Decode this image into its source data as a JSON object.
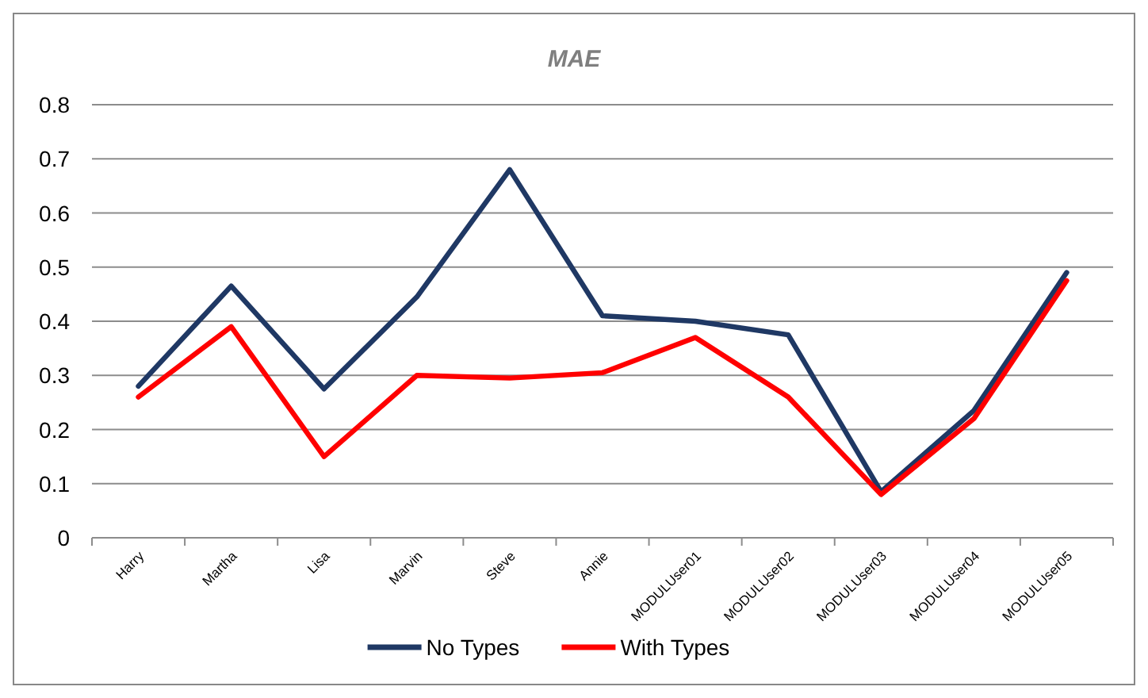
{
  "chart_data": {
    "type": "line",
    "title": "MAE",
    "categories": [
      "Harry",
      "Martha",
      "Lisa",
      "Marvin",
      "Steve",
      "Annie",
      "MODULUser01",
      "MODULUser02",
      "MODULUser03",
      "MODULUser04",
      "MODULUser05"
    ],
    "series": [
      {
        "name": "No Types",
        "color": "#1f3864",
        "values": [
          0.28,
          0.465,
          0.275,
          0.445,
          0.68,
          0.41,
          0.4,
          0.375,
          0.085,
          0.235,
          0.49
        ]
      },
      {
        "name": "With Types",
        "color": "#ff0000",
        "values": [
          0.26,
          0.39,
          0.15,
          0.3,
          0.295,
          0.305,
          0.37,
          0.26,
          0.08,
          0.22,
          0.475
        ]
      }
    ],
    "ylim": [
      0,
      0.8
    ],
    "yticks": [
      0,
      0.1,
      0.2,
      0.3,
      0.4,
      0.5,
      0.6,
      0.7,
      0.8
    ],
    "grid": "y",
    "legend": "bottom",
    "marker": "none",
    "line_style": "solid"
  }
}
